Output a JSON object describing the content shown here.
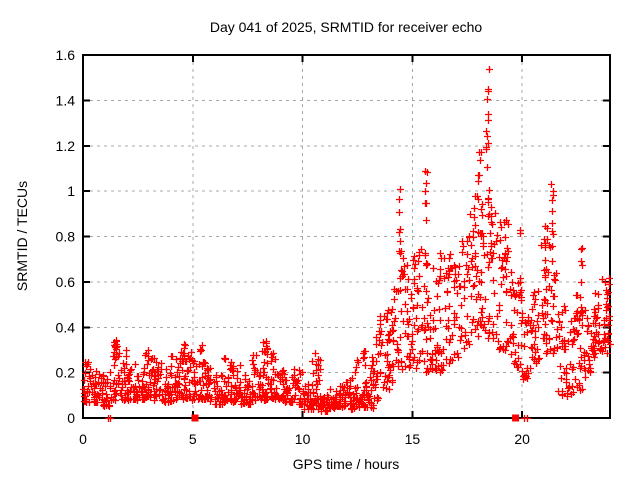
{
  "chart_data": {
    "type": "scatter",
    "title": "Day 041 of 2025, SRMTID for receiver echo",
    "xlabel": "GPS time / hours",
    "ylabel": "SRMTID / TECUs",
    "xlim": [
      0,
      24
    ],
    "ylim": [
      0,
      1.6
    ],
    "grid": true,
    "legend": "none",
    "marker": "plus",
    "point_color": "#ff0000",
    "grid_color": "#a8a8a8",
    "border_color": "#000000",
    "background_color": "#ffffff",
    "seed": 20250041,
    "xticks": [
      [
        0,
        "0"
      ],
      [
        5,
        "5"
      ],
      [
        10,
        "10"
      ],
      [
        15,
        "15"
      ],
      [
        20,
        "20"
      ]
    ],
    "yticks": [
      [
        0,
        "0"
      ],
      [
        0.2,
        "0.2"
      ],
      [
        0.4,
        "0.4"
      ],
      [
        0.6,
        "0.6"
      ],
      [
        0.8,
        "0.8"
      ],
      [
        1,
        "1"
      ],
      [
        1.2,
        "1.2"
      ],
      [
        1.4,
        "1.4"
      ],
      [
        1.6,
        "1.6"
      ]
    ],
    "scatter_bins_format": [
      "x_start_hours",
      "x_end_hours",
      "num_points",
      "y_min_tecu",
      "y_max_tecu"
    ],
    "scatter_bins": [
      [
        0.0,
        0.4,
        27,
        0.07,
        0.27
      ],
      [
        0.4,
        0.8,
        27,
        0.07,
        0.22
      ],
      [
        0.8,
        1.2,
        26,
        0.05,
        0.2
      ],
      [
        1.2,
        1.6,
        28,
        0.08,
        0.34
      ],
      [
        1.6,
        2.0,
        27,
        0.08,
        0.3
      ],
      [
        2.0,
        2.4,
        26,
        0.08,
        0.25
      ],
      [
        2.4,
        2.8,
        26,
        0.08,
        0.22
      ],
      [
        2.8,
        3.2,
        27,
        0.09,
        0.29
      ],
      [
        3.2,
        3.6,
        26,
        0.08,
        0.27
      ],
      [
        3.6,
        4.0,
        26,
        0.07,
        0.22
      ],
      [
        4.0,
        4.4,
        26,
        0.08,
        0.28
      ],
      [
        4.4,
        4.8,
        28,
        0.08,
        0.33
      ],
      [
        4.8,
        5.2,
        27,
        0.08,
        0.3
      ],
      [
        5.2,
        5.6,
        26,
        0.08,
        0.31
      ],
      [
        5.6,
        6.0,
        25,
        0.07,
        0.22
      ],
      [
        6.0,
        6.4,
        25,
        0.06,
        0.2
      ],
      [
        6.4,
        6.8,
        26,
        0.07,
        0.27
      ],
      [
        6.8,
        7.2,
        25,
        0.07,
        0.24
      ],
      [
        7.2,
        7.6,
        25,
        0.06,
        0.2
      ],
      [
        7.6,
        8.0,
        26,
        0.08,
        0.29
      ],
      [
        8.0,
        8.4,
        28,
        0.08,
        0.34
      ],
      [
        8.4,
        8.8,
        27,
        0.08,
        0.3
      ],
      [
        8.8,
        9.2,
        25,
        0.08,
        0.22
      ],
      [
        9.2,
        9.6,
        25,
        0.07,
        0.2
      ],
      [
        9.6,
        10.0,
        25,
        0.06,
        0.22
      ],
      [
        10.0,
        10.4,
        25,
        0.04,
        0.15
      ],
      [
        10.4,
        10.8,
        26,
        0.04,
        0.26
      ],
      [
        10.8,
        11.2,
        25,
        0.03,
        0.13
      ],
      [
        11.2,
        11.6,
        25,
        0.04,
        0.14
      ],
      [
        11.6,
        12.0,
        25,
        0.05,
        0.16
      ],
      [
        12.0,
        12.4,
        25,
        0.04,
        0.2
      ],
      [
        12.4,
        12.8,
        26,
        0.05,
        0.29
      ],
      [
        12.8,
        13.2,
        26,
        0.04,
        0.27
      ],
      [
        13.2,
        13.6,
        26,
        0.08,
        0.42
      ],
      [
        13.6,
        14.0,
        26,
        0.12,
        0.48
      ],
      [
        14.0,
        14.4,
        25,
        0.15,
        0.58
      ],
      [
        14.4,
        14.8,
        25,
        0.2,
        0.72
      ],
      [
        14.8,
        15.2,
        24,
        0.2,
        0.62
      ],
      [
        15.2,
        15.6,
        24,
        0.25,
        0.76
      ],
      [
        15.6,
        16.0,
        24,
        0.2,
        0.68
      ],
      [
        16.0,
        16.4,
        24,
        0.2,
        0.63
      ],
      [
        16.4,
        16.8,
        24,
        0.24,
        0.73
      ],
      [
        16.8,
        17.2,
        24,
        0.25,
        0.68
      ],
      [
        17.2,
        17.6,
        24,
        0.3,
        0.82
      ],
      [
        17.6,
        18.0,
        25,
        0.33,
        0.98
      ],
      [
        18.0,
        18.4,
        25,
        0.38,
        1.08
      ],
      [
        18.4,
        18.8,
        25,
        0.35,
        1.0
      ],
      [
        18.8,
        19.2,
        24,
        0.3,
        0.88
      ],
      [
        19.2,
        19.6,
        24,
        0.25,
        0.78
      ],
      [
        19.6,
        20.0,
        24,
        0.18,
        0.6
      ],
      [
        20.0,
        20.4,
        24,
        0.15,
        0.45
      ],
      [
        20.4,
        20.8,
        24,
        0.24,
        0.58
      ],
      [
        20.8,
        21.2,
        24,
        0.28,
        0.8
      ],
      [
        21.2,
        21.6,
        24,
        0.28,
        0.88
      ],
      [
        21.6,
        22.0,
        24,
        0.1,
        0.5
      ],
      [
        22.0,
        22.4,
        24,
        0.08,
        0.45
      ],
      [
        22.4,
        22.8,
        25,
        0.12,
        0.62
      ],
      [
        22.8,
        23.2,
        24,
        0.18,
        0.5
      ],
      [
        23.2,
        23.6,
        24,
        0.24,
        0.55
      ],
      [
        23.6,
        24.0,
        24,
        0.28,
        0.62
      ]
    ],
    "spikes_format": [
      "x_hours",
      "y_min_tecu",
      "y_max_tecu",
      "num_points"
    ],
    "spikes": [
      [
        1.5,
        0.24,
        0.37,
        7
      ],
      [
        2.9,
        0.22,
        0.3,
        4
      ],
      [
        4.55,
        0.24,
        0.34,
        6
      ],
      [
        5.35,
        0.22,
        0.32,
        5
      ],
      [
        6.8,
        0.2,
        0.28,
        4
      ],
      [
        8.3,
        0.24,
        0.35,
        7
      ],
      [
        10.65,
        0.12,
        0.3,
        6
      ],
      [
        12.8,
        0.22,
        0.33,
        5
      ],
      [
        13.5,
        0.28,
        0.46,
        6
      ],
      [
        14.45,
        0.55,
        1.05,
        11
      ],
      [
        15.1,
        0.5,
        0.75,
        5
      ],
      [
        15.6,
        0.55,
        1.12,
        11
      ],
      [
        16.25,
        0.5,
        0.73,
        6
      ],
      [
        17.8,
        0.65,
        1.0,
        7
      ],
      [
        18.1,
        0.75,
        1.2,
        8
      ],
      [
        18.42,
        0.95,
        1.55,
        15
      ],
      [
        18.6,
        0.7,
        1.05,
        6
      ],
      [
        19.3,
        0.55,
        0.9,
        6
      ],
      [
        19.95,
        0.45,
        0.83,
        8
      ],
      [
        21.1,
        0.55,
        0.85,
        7
      ],
      [
        21.38,
        0.75,
        1.1,
        9
      ],
      [
        22.7,
        0.4,
        0.75,
        9
      ],
      [
        23.3,
        0.35,
        0.6,
        5
      ],
      [
        23.85,
        0.35,
        0.63,
        6
      ]
    ],
    "baseline_plus_marks_hours": [
      1.12,
      1.22,
      20.08,
      20.2
    ],
    "baseline_square_marks_hours": [
      5.1,
      19.7
    ],
    "y_value_of_baseline_marks": 0,
    "peak_value_tecu": 1.55,
    "peak_time_hours": 18.4
  }
}
